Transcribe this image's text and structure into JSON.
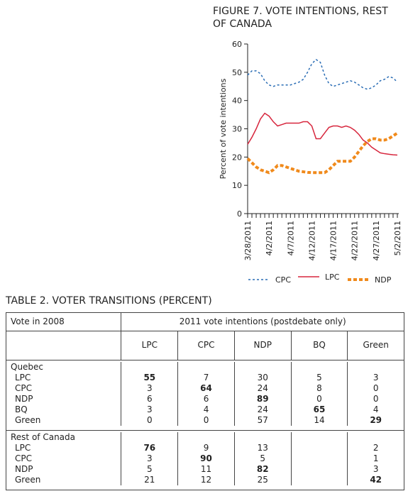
{
  "chart_data": {
    "type": "line",
    "title": "FIGURE 7. VOTE INTENTIONS, REST OF CANADA",
    "ylabel": "Percent of vote intentions",
    "x": [
      "3/28/2011",
      "3/29/2011",
      "3/30/2011",
      "3/31/2011",
      "4/1/2011",
      "4/2/2011",
      "4/3/2011",
      "4/4/2011",
      "4/5/2011",
      "4/6/2011",
      "4/7/2011",
      "4/8/2011",
      "4/9/2011",
      "4/10/2011",
      "4/11/2011",
      "4/12/2011",
      "4/13/2011",
      "4/14/2011",
      "4/15/2011",
      "4/16/2011",
      "4/17/2011",
      "4/18/2011",
      "4/19/2011",
      "4/20/2011",
      "4/21/2011",
      "4/22/2011",
      "4/23/2011",
      "4/24/2011",
      "4/25/2011",
      "4/26/2011",
      "4/27/2011",
      "4/28/2011",
      "4/29/2011",
      "4/30/2011",
      "5/1/2011",
      "5/2/2011"
    ],
    "xticks": [
      "3/28/2011",
      "4/2/2011",
      "4/7/2011",
      "4/12/2011",
      "4/17/2011",
      "4/22/2011",
      "4/27/2011",
      "5/2/2011"
    ],
    "ylim": [
      0,
      60
    ],
    "yticks": [
      0,
      10,
      20,
      30,
      40,
      50,
      60
    ],
    "series": [
      {
        "name": "CPC",
        "color": "#2a6db5",
        "values": [
          49,
          50.5,
          50.5,
          49.5,
          47,
          45.5,
          45,
          45.5,
          45.5,
          45.5,
          45.5,
          46,
          46.5,
          47.5,
          50,
          53,
          54.5,
          53.5,
          49,
          46,
          45,
          45.5,
          46,
          46.5,
          47,
          46.5,
          45.5,
          44.5,
          44,
          44.5,
          45.5,
          47,
          47.5,
          48.5,
          48,
          46.5
        ]
      },
      {
        "name": "LPC",
        "color": "#d7263d",
        "values": [
          24.5,
          27,
          30,
          33.5,
          35.5,
          34.5,
          32.5,
          31,
          31.5,
          32,
          32,
          32,
          32,
          32.5,
          32.5,
          31,
          26.5,
          26.5,
          28.5,
          30.5,
          31,
          31,
          30.5,
          31,
          30.5,
          29.5,
          28,
          26,
          25,
          23.5,
          22.5,
          21.5,
          21.2,
          21,
          20.8,
          20.7
        ]
      },
      {
        "name": "NDP",
        "color": "#f08a1c",
        "values": [
          19.5,
          18,
          16.5,
          15.5,
          15,
          14.5,
          15.5,
          17,
          17,
          16.5,
          16,
          15.5,
          15,
          14.8,
          14.6,
          14.5,
          14.5,
          14.5,
          14.5,
          15.5,
          17,
          18.5,
          18.5,
          18.5,
          18.5,
          20,
          22,
          24,
          25.5,
          26.5,
          26.5,
          26,
          26,
          26.5,
          27.5,
          28.5
        ]
      }
    ]
  },
  "table": {
    "title": "TABLE 2. VOTER TRANSITIONS (PERCENT)",
    "row_header": "Vote in 2008",
    "column_group": "2011 vote intentions (postdebate only)",
    "columns": [
      "LPC",
      "CPC",
      "NDP",
      "BQ",
      "Green"
    ],
    "groups": [
      {
        "name": "Quebec",
        "rows": [
          {
            "label": "LPC",
            "values": [
              55,
              7,
              30,
              5,
              3
            ]
          },
          {
            "label": "CPC",
            "values": [
              3,
              64,
              24,
              8,
              0
            ]
          },
          {
            "label": "NDP",
            "values": [
              6,
              6,
              89,
              0,
              0
            ]
          },
          {
            "label": "BQ",
            "values": [
              3,
              4,
              24,
              65,
              4
            ]
          },
          {
            "label": "Green",
            "values": [
              0,
              0,
              57,
              14,
              29
            ]
          }
        ]
      },
      {
        "name": "Rest of Canada",
        "rows": [
          {
            "label": "LPC",
            "values": [
              76,
              9,
              13,
              null,
              2
            ]
          },
          {
            "label": "CPC",
            "values": [
              3,
              90,
              5,
              null,
              1
            ]
          },
          {
            "label": "NDP",
            "values": [
              5,
              11,
              82,
              null,
              3
            ]
          },
          {
            "label": "Green",
            "values": [
              21,
              12,
              25,
              null,
              42
            ]
          }
        ]
      }
    ]
  }
}
